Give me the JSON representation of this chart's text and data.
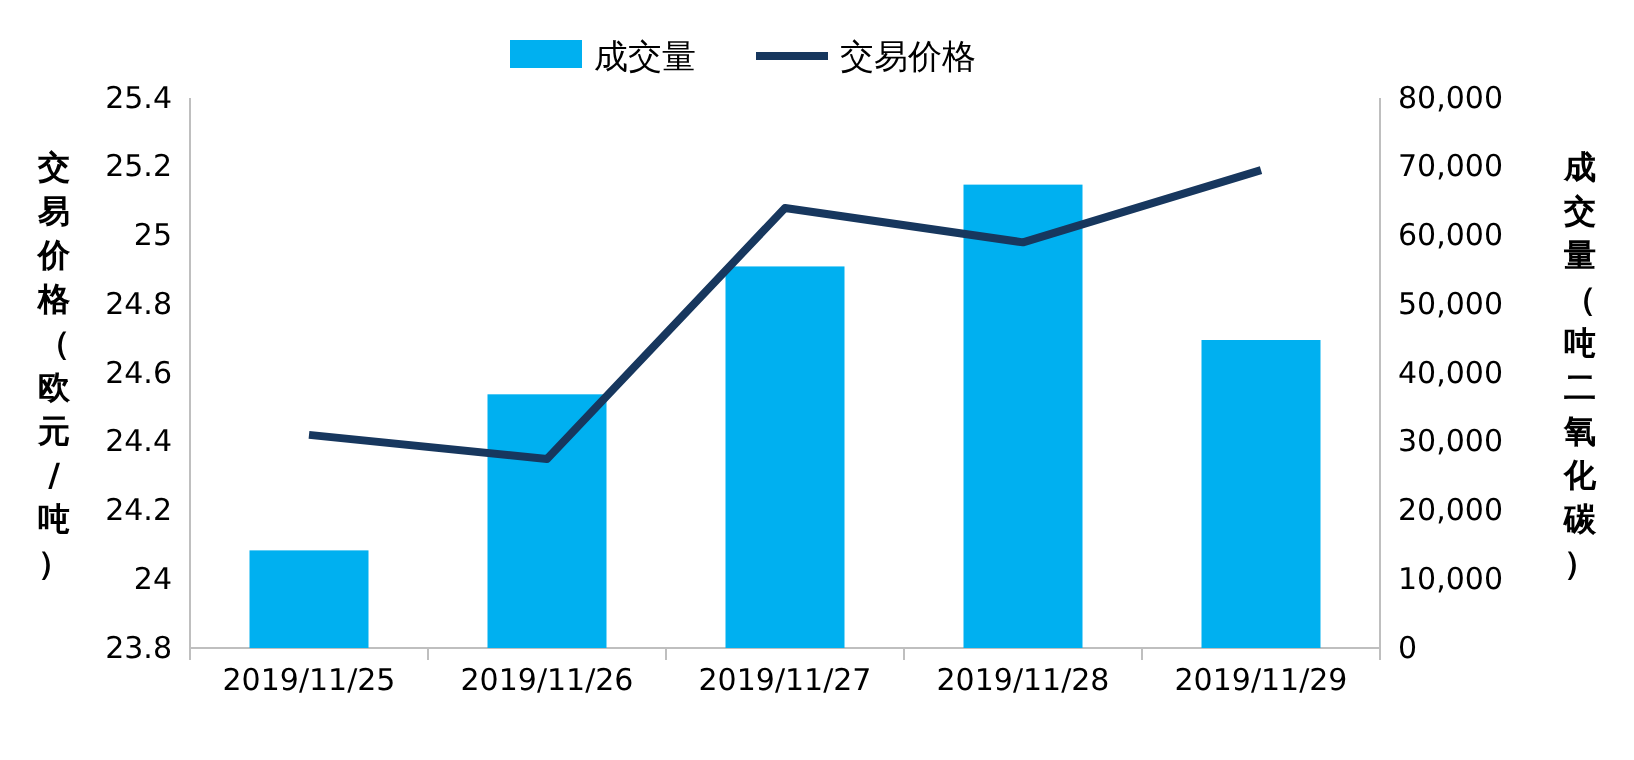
{
  "chart_data": {
    "type": "bar",
    "categories": [
      "2019/11/25",
      "2019/11/26",
      "2019/11/27",
      "2019/11/28",
      "2019/11/29"
    ],
    "series": [
      {
        "name": "成交量",
        "axis": "y2",
        "color": "#00b0f0",
        "values": [
          14200,
          36900,
          55500,
          67400,
          44800
        ]
      },
      {
        "name": "交易价格",
        "type": "line",
        "color": "#17375e",
        "values": [
          24.42,
          24.35,
          25.08,
          24.98,
          25.19
        ]
      }
    ],
    "ylabel": "交易价格（欧元/吨）",
    "y2label": "成交量（吨二氧化碳）",
    "ylim": [
      23.8,
      25.4
    ],
    "yticks": [
      23.8,
      24,
      24.2,
      24.4,
      24.6,
      24.8,
      25,
      25.2,
      25.4
    ],
    "y2lim": [
      0,
      80000
    ],
    "y2ticks": [
      0,
      {
        "value": 10000,
        "label": "10,000"
      },
      {
        "value": 20000,
        "label": "20,000"
      },
      {
        "value": 30000,
        "label": "30,000"
      },
      {
        "value": 40000,
        "label": "40,000"
      },
      {
        "value": 50000,
        "label": "50,000"
      },
      {
        "value": 60000,
        "label": "60,000"
      },
      {
        "value": 70000,
        "label": "70,000"
      },
      {
        "value": 80000,
        "label": "80,000"
      }
    ],
    "legend": "top",
    "grid": false,
    "marker": "none",
    "line_style": "solid"
  }
}
